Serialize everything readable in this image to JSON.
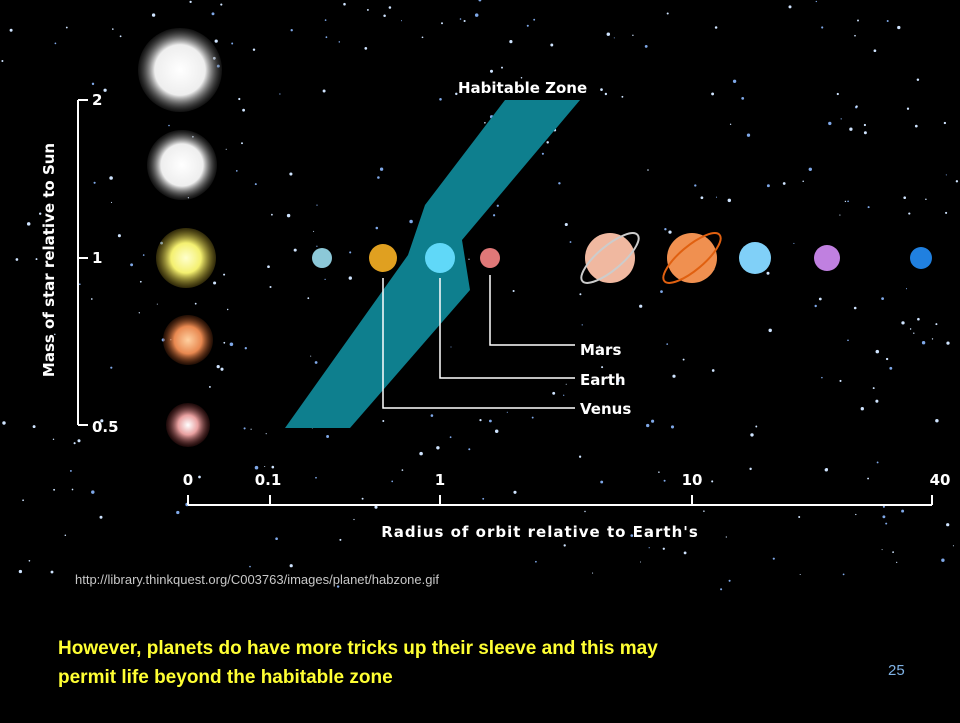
{
  "diagram": {
    "title": "Habitable Zone",
    "y_axis": {
      "label": "Mass of star relative to Sun",
      "ticks": [
        "2",
        "1",
        "0.5"
      ]
    },
    "x_axis": {
      "label": "Radius of orbit relative to Earth's",
      "ticks": [
        "0",
        "0.1",
        "1",
        "10",
        "40"
      ]
    },
    "planet_labels": [
      "Mars",
      "Earth",
      "Venus"
    ]
  },
  "source_url": "http://library.thinkquest.org/C003763/images/planet/habzone.gif",
  "caption": [
    "However, planets do have more tricks up their sleeve and this may",
    "permit life beyond the habitable zone"
  ],
  "page_number": "25"
}
